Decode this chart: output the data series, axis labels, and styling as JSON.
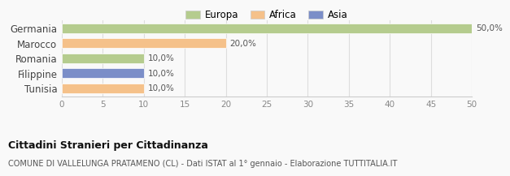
{
  "categories": [
    "Germania",
    "Marocco",
    "Romania",
    "Filippine",
    "Tunisia"
  ],
  "values": [
    50.0,
    20.0,
    10.0,
    10.0,
    10.0
  ],
  "bar_colors": [
    "#b5cc8e",
    "#f5c18a",
    "#b5cc8e",
    "#7b8ec8",
    "#f5c18a"
  ],
  "labels": [
    "50,0%",
    "20,0%",
    "10,0%",
    "10,0%",
    "10,0%"
  ],
  "xlim": [
    0,
    50
  ],
  "xticks": [
    0,
    5,
    10,
    15,
    20,
    25,
    30,
    35,
    40,
    45,
    50
  ],
  "legend_items": [
    {
      "label": "Europa",
      "color": "#b5cc8e"
    },
    {
      "label": "Africa",
      "color": "#f5c18a"
    },
    {
      "label": "Asia",
      "color": "#7b8ec8"
    }
  ],
  "title": "Cittadini Stranieri per Cittadinanza",
  "subtitle": "COMUNE DI VALLELUNGA PRATAMENO (CL) - Dati ISTAT al 1° gennaio - Elaborazione TUTTITALIA.IT",
  "background_color": "#f9f9f9",
  "bar_edge_color": "white"
}
